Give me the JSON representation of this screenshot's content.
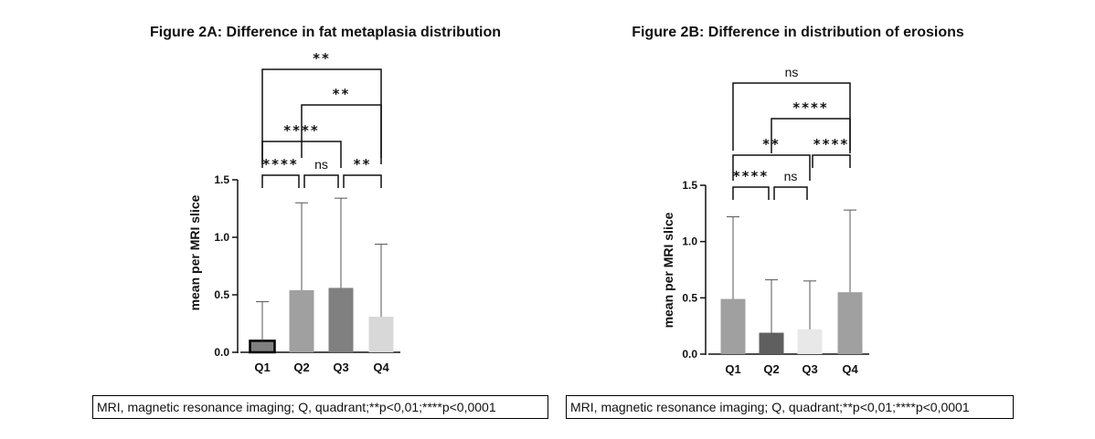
{
  "chart_data": [
    {
      "type": "bar",
      "title": "Figure 2A: Difference in fat metaplasia distribution",
      "ylabel": "mean per MRI slice",
      "xlabel": "",
      "ylim": [
        0,
        1.5
      ],
      "yticks": [
        "0.0",
        "0.5",
        "1.0",
        "1.5"
      ],
      "categories": [
        "Q1",
        "Q2",
        "Q3",
        "Q4"
      ],
      "values": [
        0.1,
        0.54,
        0.56,
        0.31
      ],
      "error_upper": [
        0.44,
        1.3,
        1.34,
        0.94
      ],
      "bar_colors": [
        "#808080",
        "#a0a0a0",
        "#808080",
        "#d8d8d8"
      ],
      "bar_outline": [
        "#000000",
        "none",
        "none",
        "none"
      ],
      "comparisons": [
        {
          "from": "Q1",
          "to": "Q2",
          "label": "****"
        },
        {
          "from": "Q2",
          "to": "Q3",
          "label": "ns"
        },
        {
          "from": "Q3",
          "to": "Q4",
          "label": "**"
        },
        {
          "from": "Q1",
          "to": "Q3",
          "label": "****"
        },
        {
          "from": "Q2",
          "to": "Q4",
          "label": "**"
        },
        {
          "from": "Q1",
          "to": "Q4",
          "label": "**"
        }
      ],
      "footnote": "MRI, magnetic resonance imaging; Q, quadrant;**p<0,01;****p<0,0001"
    },
    {
      "type": "bar",
      "title": "Figure 2B: Difference in distribution of erosions",
      "ylabel": "mean per MRI slice",
      "xlabel": "",
      "ylim": [
        0,
        1.5
      ],
      "yticks": [
        "0.0",
        "0.5",
        "1.0",
        "1.5"
      ],
      "categories": [
        "Q1",
        "Q2",
        "Q3",
        "Q4"
      ],
      "values": [
        0.49,
        0.19,
        0.22,
        0.55
      ],
      "error_upper": [
        1.22,
        0.66,
        0.65,
        1.28
      ],
      "bar_colors": [
        "#a0a0a0",
        "#5f5f5f",
        "#e8e8e8",
        "#a0a0a0"
      ],
      "bar_outline": [
        "none",
        "none",
        "none",
        "none"
      ],
      "comparisons": [
        {
          "from": "Q1",
          "to": "Q2",
          "label": "****"
        },
        {
          "from": "Q2",
          "to": "Q3",
          "label": "ns"
        },
        {
          "from": "Q1",
          "to": "Q3",
          "label": "**"
        },
        {
          "from": "Q3",
          "to": "Q4",
          "label": "****"
        },
        {
          "from": "Q2",
          "to": "Q4",
          "label": "****"
        },
        {
          "from": "Q1",
          "to": "Q4",
          "label": "ns"
        }
      ],
      "footnote": "MRI, magnetic resonance imaging; Q, quadrant;**p<0,01;****p<0,0001"
    }
  ]
}
